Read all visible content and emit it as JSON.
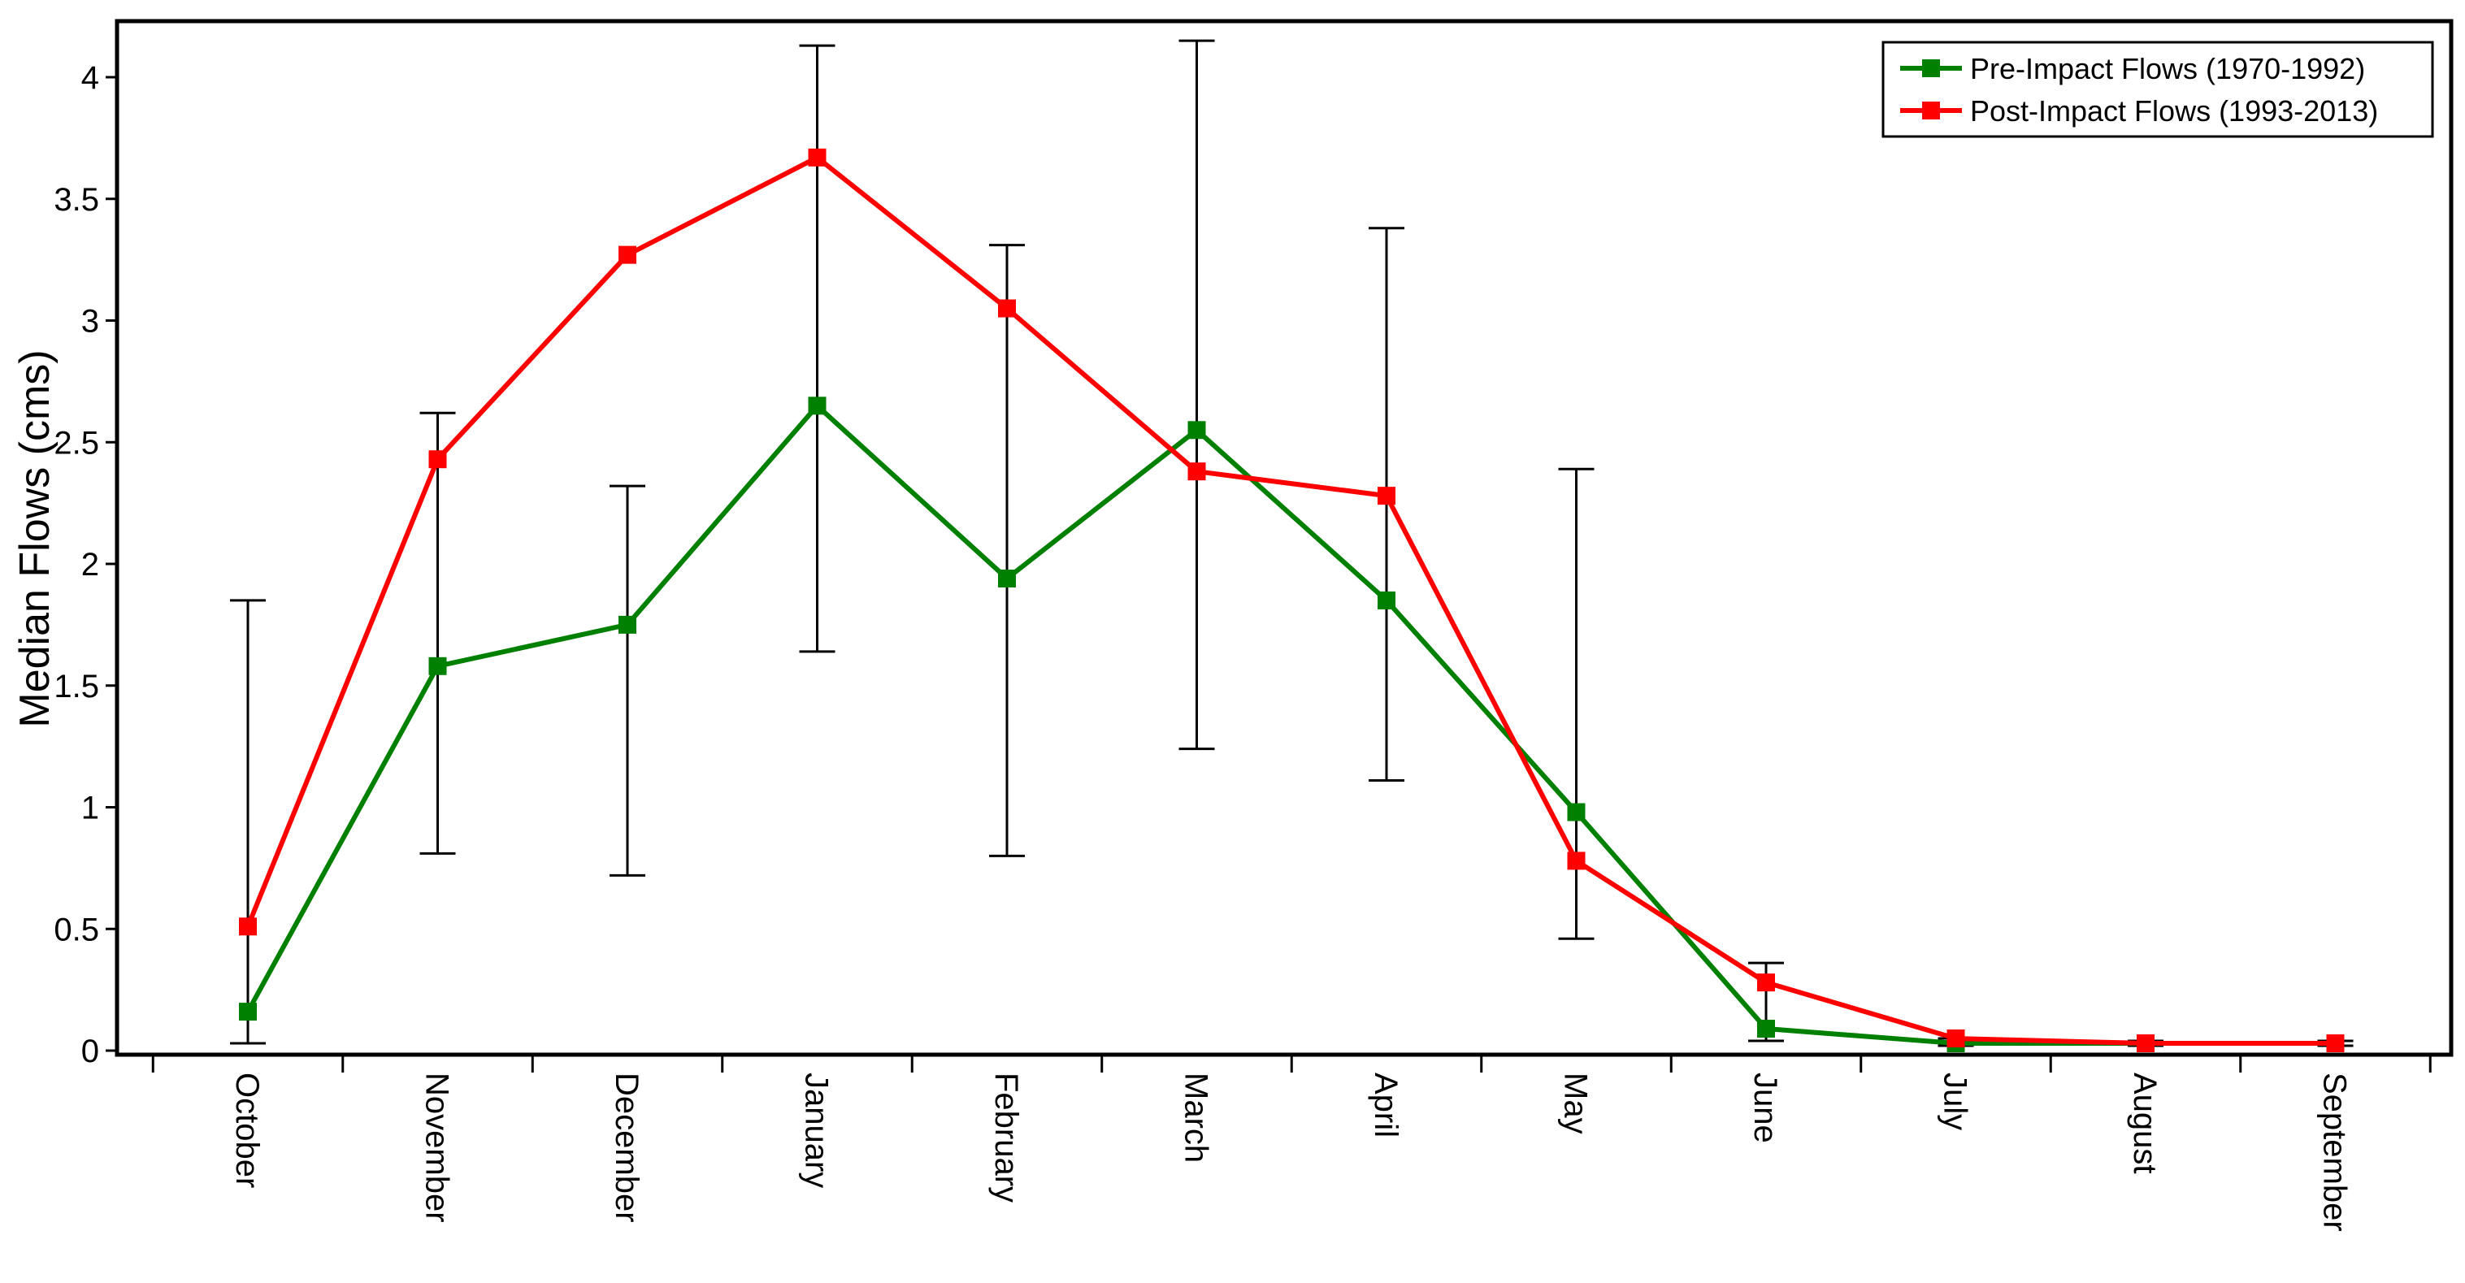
{
  "chart_data": {
    "type": "line",
    "title": "",
    "xlabel": "",
    "ylabel": "Median Flows (cms)",
    "ylim": [
      0,
      4.1
    ],
    "yticks": [
      0,
      0.5,
      1,
      1.5,
      2,
      2.5,
      3,
      3.5,
      4
    ],
    "ytick_labels": [
      "0",
      "0.5",
      "1",
      "1.5",
      "2",
      "2.5",
      "3",
      "3.5",
      "4"
    ],
    "categories": [
      "October",
      "November",
      "December",
      "January",
      "February",
      "March",
      "April",
      "May",
      "June",
      "July",
      "August",
      "September"
    ],
    "series": [
      {
        "name": "Pre-Impact Flows (1970-1992)",
        "color": "#008000",
        "values": [
          0.16,
          1.58,
          1.75,
          2.65,
          1.94,
          2.55,
          1.85,
          0.98,
          0.09,
          0.03,
          0.03,
          0.03
        ]
      },
      {
        "name": "Post-Impact Flows (1993-2013)",
        "color": "#ff0000",
        "values": [
          0.51,
          2.43,
          3.27,
          3.67,
          3.05,
          2.38,
          2.28,
          0.78,
          0.28,
          0.05,
          0.03,
          0.03
        ]
      }
    ],
    "error_bars": [
      {
        "category": "October",
        "low": 0.03,
        "high": 1.85
      },
      {
        "category": "November",
        "low": 0.81,
        "high": 2.62
      },
      {
        "category": "December",
        "low": 0.72,
        "high": 2.32
      },
      {
        "category": "January",
        "low": 1.64,
        "high": 4.13
      },
      {
        "category": "February",
        "low": 0.8,
        "high": 3.31
      },
      {
        "category": "March",
        "low": 1.24,
        "high": 4.15
      },
      {
        "category": "April",
        "low": 1.11,
        "high": 3.38
      },
      {
        "category": "May",
        "low": 0.46,
        "high": 2.39
      },
      {
        "category": "June",
        "low": 0.04,
        "high": 0.36
      },
      {
        "category": "July",
        "low": 0.02,
        "high": 0.05
      },
      {
        "category": "August",
        "low": 0.02,
        "high": 0.04
      },
      {
        "category": "September",
        "low": 0.02,
        "high": 0.04
      }
    ],
    "legend_position": "top-right",
    "grid": false
  }
}
